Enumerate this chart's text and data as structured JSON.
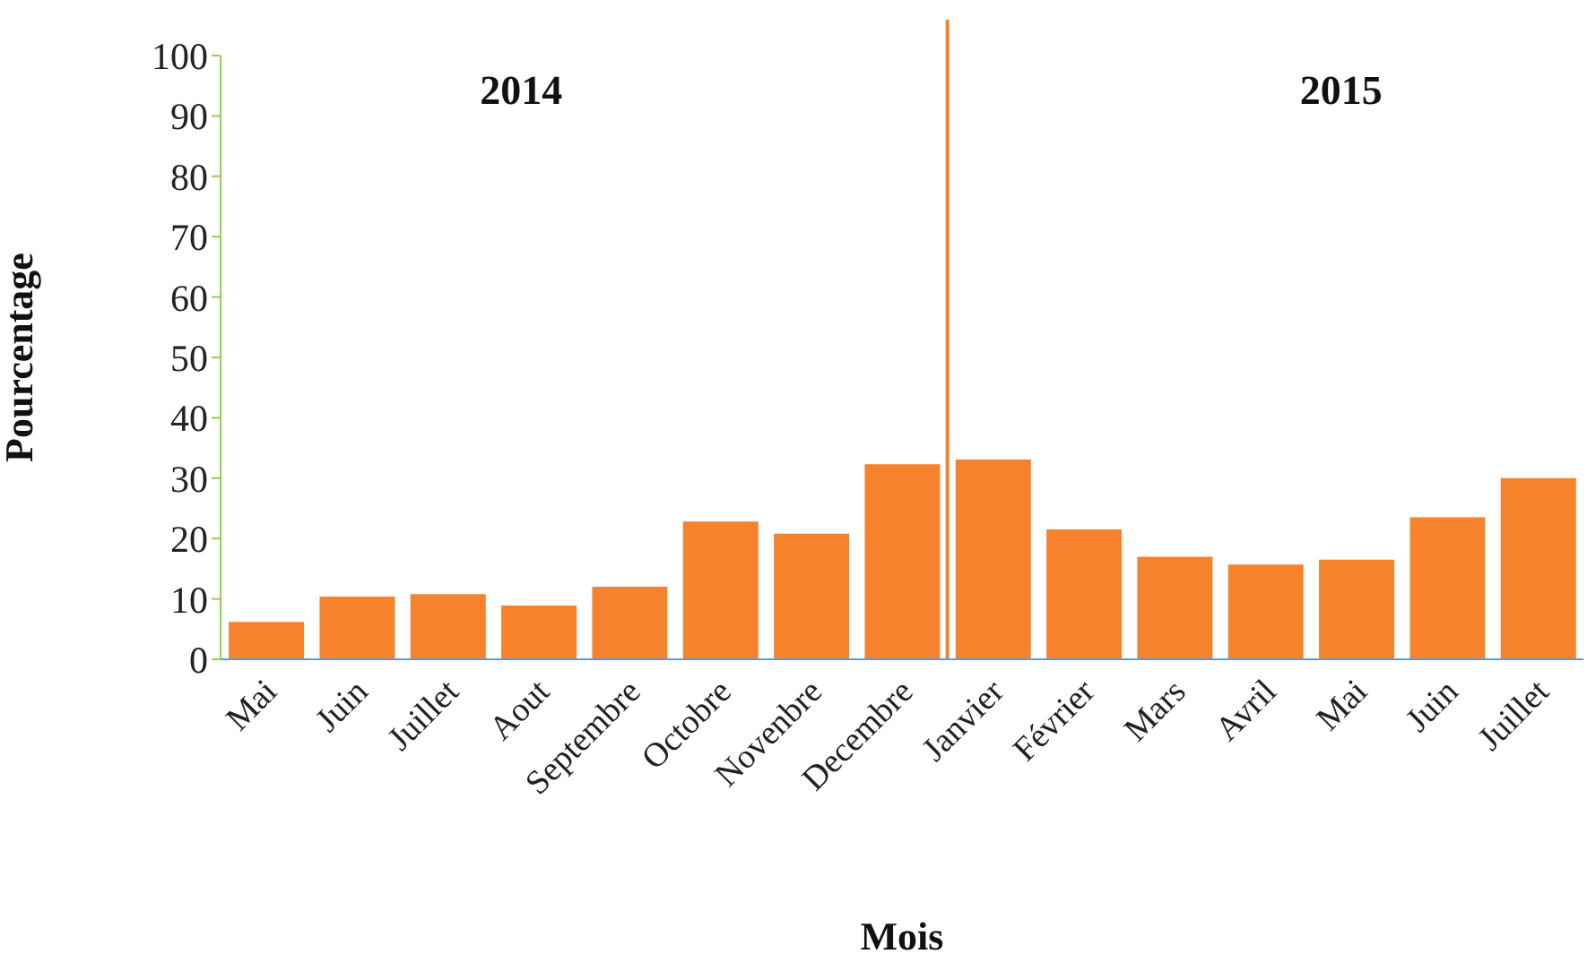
{
  "chart_data": {
    "type": "bar",
    "xlabel": "Mois",
    "ylabel": "Pourcentage",
    "categories": [
      "Mai",
      "Juin",
      "Juillet",
      "Aout",
      "Septembre",
      "Octobre",
      "Novenbre",
      "Decembre",
      "Janvier",
      "Février",
      "Mars",
      "Avril",
      "Mai",
      "Juin",
      "Juillet"
    ],
    "values": [
      6.2,
      10.4,
      10.8,
      8.9,
      12.0,
      22.8,
      20.8,
      32.3,
      33.1,
      21.5,
      17.0,
      15.7,
      16.5,
      23.5,
      30.0
    ],
    "color": "#f7822e",
    "ylim": [
      0,
      100
    ],
    "yticks": [
      0,
      10,
      20,
      30,
      40,
      50,
      60,
      70,
      80,
      90,
      100
    ],
    "grid": false,
    "ref_lines": [
      {
        "axis": "x",
        "value": "Janvier",
        "color": "#f7822e"
      }
    ],
    "annotations": [
      "2014",
      "2015"
    ]
  }
}
